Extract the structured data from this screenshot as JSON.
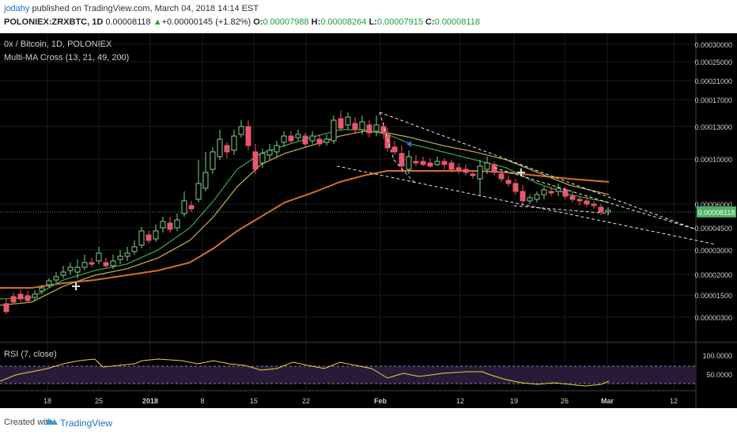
{
  "header": {
    "user": "jodahy",
    "published_text": "published on TradingView.com, March 04, 2018 14:14 EST",
    "symbol": "POLONIEX:ZRXBTC, 1D",
    "last": "0.00008118",
    "change_arrow": "▲",
    "change": "+0.00000145 (+1.82%)",
    "o_label": "O:",
    "o_value": "0.00007988",
    "h_label": "H:",
    "h_value": "0.00008264",
    "l_label": "L:",
    "l_value": "0.00007915",
    "c_label": "C:",
    "c_value": "0.00008118"
  },
  "chart": {
    "title": "0x / Bitcoin, 1D, POLONIEX",
    "indicator_label": "Multi-MA Cross (13, 21, 49, 200)",
    "price_axis": [
      "0.00030000",
      "0.00025000",
      "0.00021000",
      "0.00017000",
      "0.00013000",
      "0.00010000",
      "0.00006000",
      "0.00004500",
      "0.00003000",
      "0.00002000",
      "0.00001500",
      "0.00000300"
    ],
    "price_tag": "0.00008118",
    "rsi_label": "RSI (7, close)",
    "rsi_axis": [
      "100.0000",
      "50.0000"
    ],
    "time_axis": [
      "18",
      "25",
      "2018",
      "8",
      "15",
      "22",
      "Feb",
      "12",
      "19",
      "26",
      "Mar",
      "12"
    ],
    "colors": {
      "background": "#000000",
      "candle_up": "#7fd18c",
      "candle_down": "#e8586b",
      "ma13": "#3e9c3e",
      "ma21": "#b9a64a",
      "ma49": "#d07028",
      "rsi_line": "#e8d438",
      "rsi_band": "#2a1a3a",
      "grid": "#1b1b1b"
    }
  },
  "footer": {
    "created_with": "Created with",
    "brand": "TradingView"
  }
}
